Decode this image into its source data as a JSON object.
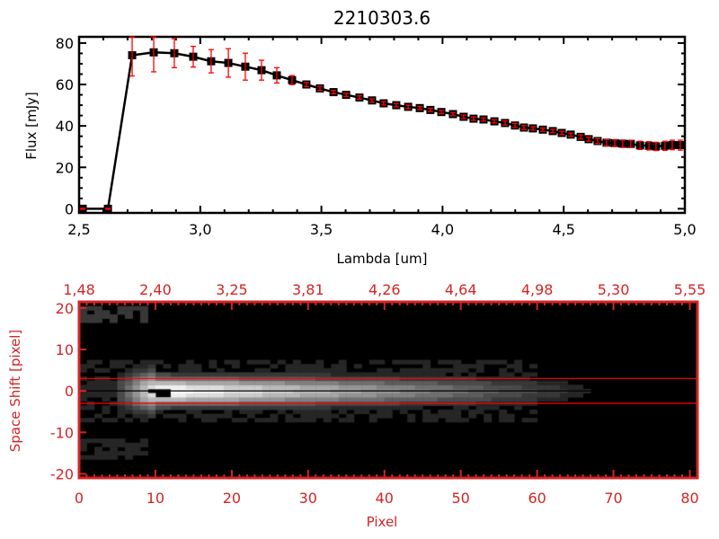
{
  "chart_data": [
    {
      "type": "line",
      "title": "2210303.6",
      "xlabel": "Lambda [um]",
      "ylabel": "Flux [mJy]",
      "xlim": [
        2.5,
        5.0
      ],
      "ylim": [
        -2,
        83
      ],
      "x_tick_labels": [
        "2,5",
        "3,0",
        "3,5",
        "4,0",
        "4,5",
        "5,0"
      ],
      "y_tick_labels": [
        "0",
        "20",
        "40",
        "60",
        "80"
      ],
      "line_color": "#000000",
      "errorbar_color": "#ff0000",
      "marker": "filled-square",
      "x": [
        2.515,
        2.619,
        2.719,
        2.808,
        2.893,
        2.971,
        3.045,
        3.116,
        3.186,
        3.253,
        3.316,
        3.379,
        3.438,
        3.494,
        3.55,
        3.602,
        3.657,
        3.709,
        3.757,
        3.809,
        3.858,
        3.906,
        3.95,
        3.995,
        4.043,
        4.087,
        4.128,
        4.169,
        4.214,
        4.258,
        4.299,
        4.336,
        4.373,
        4.414,
        4.455,
        4.492,
        4.529,
        4.57,
        4.603,
        4.64,
        4.677,
        4.711,
        4.744,
        4.777,
        4.815,
        4.852,
        4.881,
        4.918,
        4.948,
        4.981
      ],
      "y": [
        0,
        0,
        74.1,
        75.5,
        75.1,
        73.4,
        71.2,
        70.4,
        68.6,
        66.9,
        64.4,
        62.1,
        60.0,
        58.1,
        56.3,
        55.0,
        53.7,
        52.3,
        50.9,
        50.0,
        49.2,
        48.6,
        47.7,
        46.7,
        45.7,
        44.4,
        43.5,
        43.1,
        42.2,
        41.4,
        40.2,
        39.2,
        38.8,
        38.2,
        37.5,
        36.6,
        35.8,
        34.7,
        33.6,
        32.7,
        31.9,
        31.7,
        31.4,
        31.3,
        30.6,
        30.4,
        30.1,
        30.4,
        30.8,
        30.7
      ],
      "yerr": [
        0.3,
        0.3,
        10,
        9.4,
        7,
        5,
        5.6,
        6.9,
        6.5,
        4.8,
        3.7,
        2.2,
        1,
        1,
        0.8,
        0.8,
        0.8,
        0.8,
        0.8,
        0.8,
        0.8,
        0.8,
        0.8,
        0.8,
        0.8,
        0.8,
        0.8,
        0.8,
        0.8,
        1,
        1,
        1,
        0.8,
        0.8,
        0.8,
        0.8,
        0.8,
        1,
        1,
        1.2,
        1.5,
        1.5,
        1.8,
        1.8,
        2,
        2,
        2,
        2.2,
        2.3,
        2.4
      ]
    },
    {
      "type": "heatmap",
      "xlabel": "Pixel",
      "ylabel": "Space Shift [pixel]",
      "xlim": [
        0,
        81
      ],
      "ylim": [
        -21,
        21.5
      ],
      "x_tick_labels": [
        "0",
        "10",
        "20",
        "30",
        "40",
        "50",
        "60",
        "70",
        "80"
      ],
      "y_tick_labels": [
        "-20",
        "-10",
        "0",
        "10",
        "20"
      ],
      "top_axis_tick_labels": [
        "1,48",
        "2,40",
        "3,25",
        "3,81",
        "4,26",
        "4,64",
        "4,98",
        "5,30",
        "5,55"
      ],
      "colormap": "grayscale",
      "axis_color": "#d42424",
      "horizontal_lines": [
        {
          "y": 3,
          "color": "#ff0000"
        },
        {
          "y": 0,
          "color": "#000000"
        },
        {
          "y": -3,
          "color": "#ff0000"
        }
      ]
    }
  ]
}
